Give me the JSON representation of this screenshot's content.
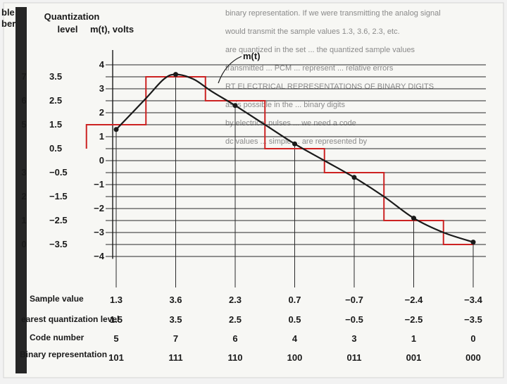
{
  "header": {
    "col1_top": "ble",
    "col1_bottom": "ber",
    "quant_line1": "Quantization",
    "quant_line2": "level",
    "volts": "m(t), volts"
  },
  "chart_data": {
    "type": "line",
    "title": "",
    "xlabel": "",
    "ylabel": "m(t), volts",
    "curve_label": "m(t)",
    "ylim": [
      -4,
      4
    ],
    "grid": true,
    "level_labels": [
      {
        "y": 3.5,
        "text": "3.5"
      },
      {
        "y": 2.5,
        "text": "2.5"
      },
      {
        "y": 1.5,
        "text": "1.5"
      },
      {
        "y": 0.5,
        "text": "0.5"
      },
      {
        "y": -0.5,
        "text": "−0.5"
      },
      {
        "y": -1.5,
        "text": "−1.5"
      },
      {
        "y": -2.5,
        "text": "−2.5"
      },
      {
        "y": -3.5,
        "text": "−3.5"
      }
    ],
    "volt_ticks": [
      {
        "y": 4,
        "text": "4"
      },
      {
        "y": 3,
        "text": "3"
      },
      {
        "y": 2,
        "text": "2"
      },
      {
        "y": 1,
        "text": "1"
      },
      {
        "y": 0,
        "text": "0"
      },
      {
        "y": -1,
        "text": "−1"
      },
      {
        "y": -2,
        "text": "−2"
      },
      {
        "y": -3,
        "text": "−3"
      },
      {
        "y": -4,
        "text": "−4"
      }
    ],
    "code_ticks": [
      {
        "y": 3.5,
        "text": "7"
      },
      {
        "y": 2.5,
        "text": "6"
      },
      {
        "y": 1.5,
        "text": "5"
      },
      {
        "y": -0.5,
        "text": "3"
      },
      {
        "y": -1.5,
        "text": "2"
      },
      {
        "y": -2.5,
        "text": "1"
      },
      {
        "y": -3.5,
        "text": "0"
      }
    ],
    "samples": [
      {
        "t": 1,
        "value": 1.3,
        "quantized": 1.5,
        "code": "5",
        "binary": "101"
      },
      {
        "t": 2,
        "value": 3.6,
        "quantized": 3.5,
        "code": "7",
        "binary": "111"
      },
      {
        "t": 3,
        "value": 2.3,
        "quantized": 2.5,
        "code": "6",
        "binary": "110"
      },
      {
        "t": 4,
        "value": 0.7,
        "quantized": 0.5,
        "code": "4",
        "binary": "100"
      },
      {
        "t": 5,
        "value": -0.7,
        "quantized": -0.5,
        "code": "3",
        "binary": "011"
      },
      {
        "t": 6,
        "value": -2.4,
        "quantized": -2.5,
        "code": "1",
        "binary": "001"
      },
      {
        "t": 7,
        "value": -3.4,
        "quantized": -3.5,
        "code": "0",
        "binary": "000"
      }
    ],
    "sample_value_labels": [
      "1.3",
      "3.6",
      "2.3",
      "0.7",
      "−0.7",
      "−2.4",
      "−3.4"
    ],
    "quantized_labels": [
      "1.5",
      "3.5",
      "2.5",
      "0.5",
      "−0.5",
      "−2.5",
      "−3.5"
    ],
    "staircase": [
      {
        "t0": 0.5,
        "t1": 1.5,
        "level": 1.5
      },
      {
        "t0": 1.5,
        "t1": 2.5,
        "level": 3.5
      },
      {
        "t0": 2.5,
        "t1": 3.5,
        "level": 2.5
      },
      {
        "t0": 3.5,
        "t1": 4.5,
        "level": 0.5
      },
      {
        "t0": 4.5,
        "t1": 5.5,
        "level": -0.5
      },
      {
        "t0": 5.5,
        "t1": 6.5,
        "level": -2.5
      },
      {
        "t0": 6.5,
        "t1": 7.0,
        "level": -3.5
      }
    ],
    "curve": [
      {
        "t": 1.0,
        "v": 1.3
      },
      {
        "t": 1.5,
        "v": 2.6
      },
      {
        "t": 1.8,
        "v": 3.4
      },
      {
        "t": 2.0,
        "v": 3.6
      },
      {
        "t": 2.3,
        "v": 3.4
      },
      {
        "t": 2.6,
        "v": 2.9
      },
      {
        "t": 3.0,
        "v": 2.3
      },
      {
        "t": 3.5,
        "v": 1.5
      },
      {
        "t": 4.0,
        "v": 0.7
      },
      {
        "t": 4.5,
        "v": 0.0
      },
      {
        "t": 5.0,
        "v": -0.7
      },
      {
        "t": 5.5,
        "v": -1.5
      },
      {
        "t": 6.0,
        "v": -2.4
      },
      {
        "t": 6.5,
        "v": -3.0
      },
      {
        "t": 7.0,
        "v": -3.4
      }
    ],
    "colors": {
      "staircase": "#cc2222",
      "curve": "#1a1a1a",
      "grid": "#2a2a2a"
    }
  },
  "rows": {
    "sample_value": "Sample value",
    "nearest_level": "earest quantization level",
    "code_number": "Code number",
    "binary_rep": "Binary representation"
  },
  "background_text": [
    "binary representation. If we were transmitting the analog signal",
    "would transmit the sample values 1.3, 3.6, 2.3, etc.",
    "are quantized in the set ... the quantized sample values",
    "transmitted ... PCM ... represent ... relative errors",
    "RT ELECTRICAL REPRESENTATIONS OF BINARY DIGITS",
    "as is possible in the ... binary digits",
    "by electrical pulses ... we need a code",
    "dc values ... simple ... are represented by"
  ]
}
